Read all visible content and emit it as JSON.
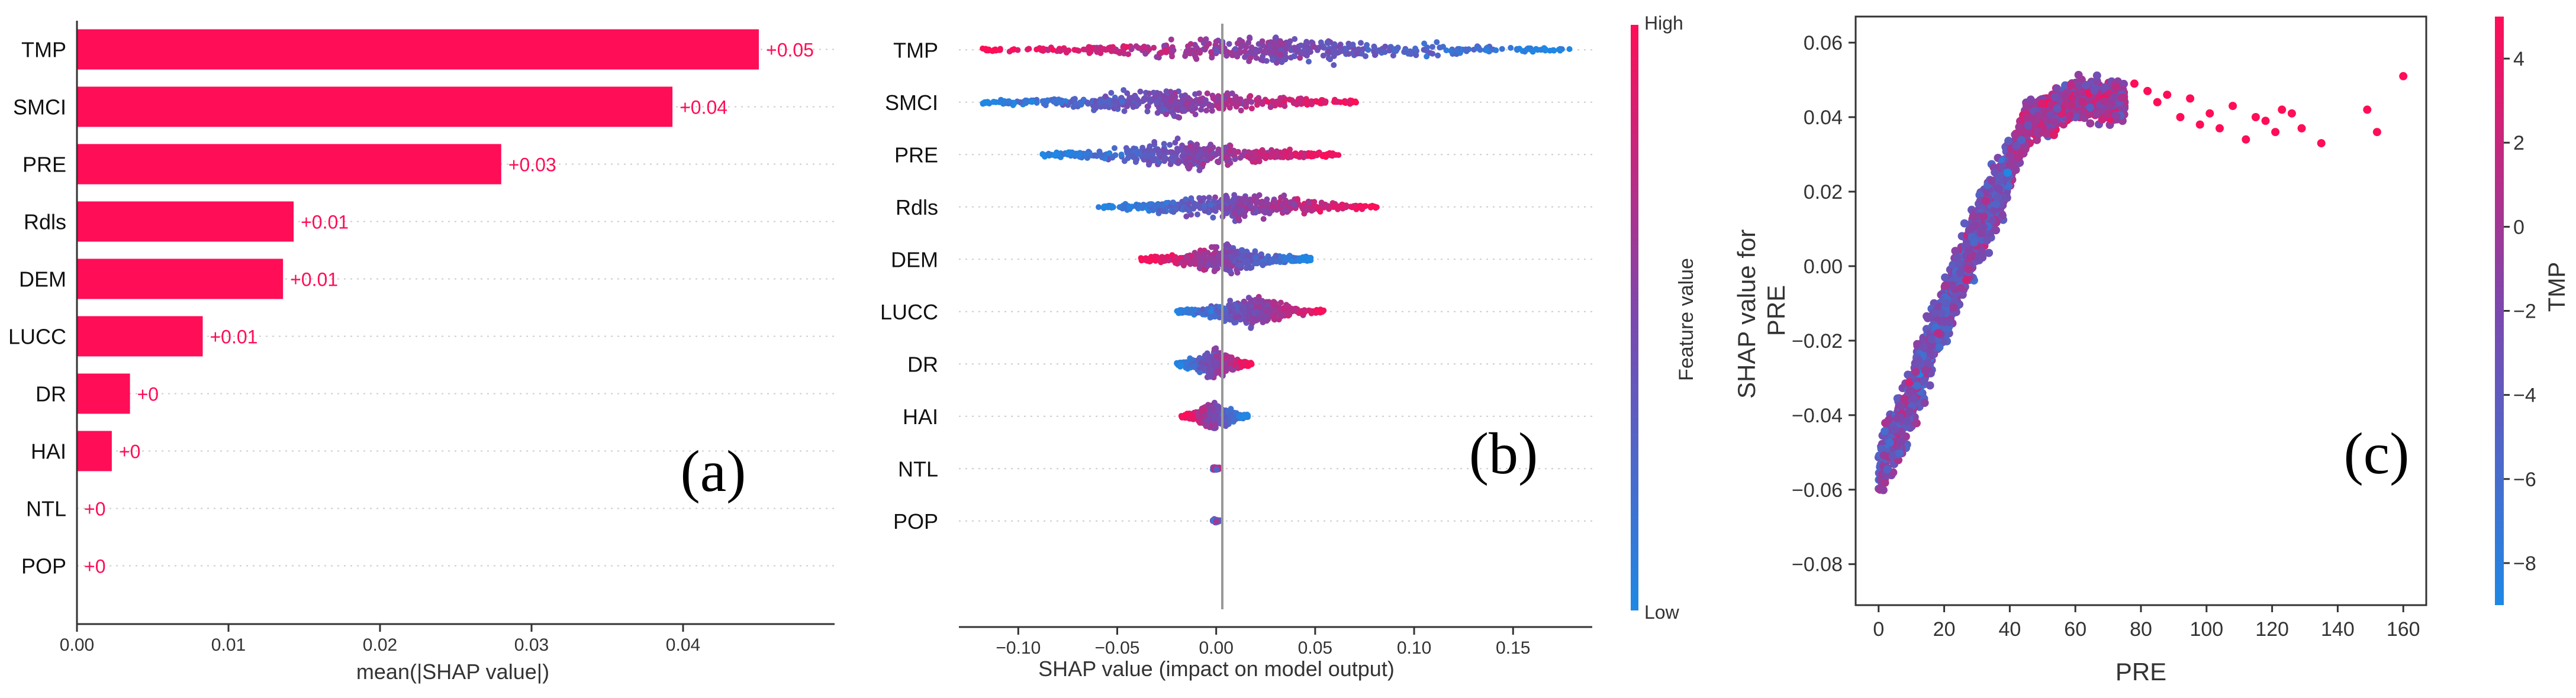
{
  "colors": {
    "pink": "#ff0d57",
    "blue": "#1e88e5",
    "mid": "#7b48ae",
    "axis": "#333333",
    "grid": "#cccccc",
    "text": "#333333"
  },
  "chart_data": [
    {
      "type": "bar",
      "panel_label": "(a)",
      "categories": [
        "TMP",
        "SMCI",
        "PRE",
        "Rdls",
        "DEM",
        "LUCC",
        "DR",
        "HAI",
        "NTL",
        "POP"
      ],
      "values": [
        0.045,
        0.0393,
        0.028,
        0.0143,
        0.0136,
        0.0083,
        0.0035,
        0.0023,
        0.0,
        0.0
      ],
      "value_labels": [
        "+0.05",
        "+0.04",
        "+0.03",
        "+0.01",
        "+0.01",
        "+0.01",
        "+0",
        "+0",
        "+0",
        "+0"
      ],
      "xlabel": "mean(|SHAP value|)",
      "ylabel": "",
      "xlim": [
        0,
        0.05
      ],
      "x_ticks": [
        "0.00",
        "0.01",
        "0.02",
        "0.03",
        "0.04"
      ],
      "x_tick_values": [
        0,
        0.01,
        0.02,
        0.03,
        0.04
      ],
      "grid": "dotted horizontal row guides"
    },
    {
      "type": "scatter",
      "subtype": "beeswarm",
      "panel_label": "(b)",
      "features": [
        "TMP",
        "SMCI",
        "PRE",
        "Rdls",
        "DEM",
        "LUCC",
        "DR",
        "HAI",
        "NTL",
        "POP"
      ],
      "shap_range": [
        [
          -0.12,
          0.18
        ],
        [
          -0.118,
          0.072
        ],
        [
          -0.088,
          0.062
        ],
        [
          -0.06,
          0.082
        ],
        [
          -0.038,
          0.048
        ],
        [
          -0.02,
          0.055
        ],
        [
          -0.02,
          0.018
        ],
        [
          -0.018,
          0.016
        ],
        [
          -0.002,
          0.002
        ],
        [
          -0.002,
          0.002
        ]
      ],
      "low_value_side": [
        "right",
        "left",
        "left",
        "left",
        "right",
        "left",
        "left",
        "right",
        "mixed",
        "mixed"
      ],
      "xlabel": "SHAP value (impact on model output)",
      "xlim": [
        -0.13,
        0.19
      ],
      "x_ticks": [
        "−0.10",
        "−0.05",
        "0.00",
        "0.05",
        "0.10",
        "0.15"
      ],
      "x_tick_values": [
        -0.1,
        -0.05,
        0,
        0.05,
        0.1,
        0.15
      ],
      "colorbar": {
        "label": "Feature value",
        "high": "High",
        "low": "Low"
      }
    },
    {
      "type": "scatter",
      "subtype": "dependence",
      "panel_label": "(c)",
      "xlabel": "PRE",
      "ylabel": "SHAP value for\nPRE",
      "xlim": [
        -7,
        167
      ],
      "ylim": [
        -0.091,
        0.067
      ],
      "x_ticks": [
        "0",
        "20",
        "40",
        "60",
        "80",
        "100",
        "120",
        "140",
        "160"
      ],
      "x_tick_values": [
        0,
        20,
        40,
        60,
        80,
        100,
        120,
        140,
        160
      ],
      "y_ticks": [
        "−0.08",
        "−0.06",
        "−0.04",
        "−0.02",
        "0.00",
        "0.02",
        "0.04",
        "0.06"
      ],
      "y_tick_values": [
        -0.08,
        -0.06,
        -0.04,
        -0.02,
        0,
        0.02,
        0.04,
        0.06
      ],
      "trend": [
        [
          0,
          -0.055
        ],
        [
          10,
          -0.035
        ],
        [
          20,
          -0.012
        ],
        [
          30,
          0.008
        ],
        [
          38,
          0.022
        ],
        [
          45,
          0.038
        ],
        [
          60,
          0.045
        ],
        [
          75,
          0.044
        ]
      ],
      "outliers": [
        [
          78,
          0.049
        ],
        [
          82,
          0.047
        ],
        [
          85,
          0.044
        ],
        [
          88,
          0.046
        ],
        [
          92,
          0.04
        ],
        [
          95,
          0.045
        ],
        [
          98,
          0.038
        ],
        [
          101,
          0.041
        ],
        [
          104,
          0.037
        ],
        [
          108,
          0.043
        ],
        [
          112,
          0.034
        ],
        [
          115,
          0.04
        ],
        [
          118,
          0.039
        ],
        [
          121,
          0.036
        ],
        [
          123,
          0.042
        ],
        [
          126,
          0.041
        ],
        [
          129,
          0.037
        ],
        [
          135,
          0.033
        ],
        [
          149,
          0.042
        ],
        [
          152,
          0.036
        ],
        [
          160,
          0.051
        ]
      ],
      "colorbar": {
        "label": "TMP",
        "range": [
          -9,
          5
        ],
        "ticks": [
          "−8",
          "−6",
          "−4",
          "−2",
          "0",
          "2",
          "4"
        ],
        "tick_values": [
          -8,
          -6,
          -4,
          -2,
          0,
          2,
          4
        ]
      }
    }
  ]
}
